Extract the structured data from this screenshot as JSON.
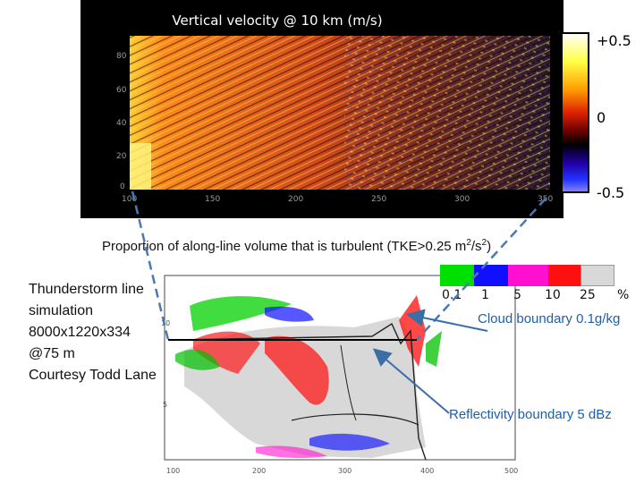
{
  "top_panel": {
    "title": "Vertical velocity @ 10 km (m/s)",
    "y_ticks": [
      "80",
      "60",
      "40",
      "20",
      "0"
    ],
    "x_ticks": [
      "100",
      "150",
      "200",
      "250",
      "300",
      "350"
    ],
    "colorbar": {
      "labels": [
        "+0.5",
        "0",
        "-0.5"
      ],
      "colors": [
        "#ffffff",
        "#ffff33",
        "#ff8800",
        "#dd2200",
        "#880000",
        "#000000",
        "#220088",
        "#2222ff",
        "#7777ff"
      ]
    }
  },
  "mid_title": {
    "prefix": "Proportion of along-line volume that is turbulent (TKE>0.25 m",
    "sup1": "2",
    "middle": "/s",
    "sup2": "2",
    "suffix": ")"
  },
  "side_text": {
    "lines": [
      "Thunderstorm line",
      "simulation",
      "8000x1220x334",
      "@75 m",
      "Courtesy Todd Lane"
    ]
  },
  "legend": {
    "swatch_colors": [
      "#00e000",
      "#1010ff",
      "#ff10d0",
      "#ff1010",
      "#d8d8d8"
    ],
    "labels": [
      "0.1",
      "1",
      "5",
      "10",
      "25",
      "%"
    ]
  },
  "annotations": {
    "cloud": "Cloud boundary 0.1g/kg",
    "reflectivity": "Reflectivity boundary 5 dBz"
  },
  "bottom_panel": {
    "y_ticks": [
      "10",
      "5"
    ],
    "x_ticks": [
      "100",
      "200",
      "300",
      "400",
      "500"
    ]
  }
}
